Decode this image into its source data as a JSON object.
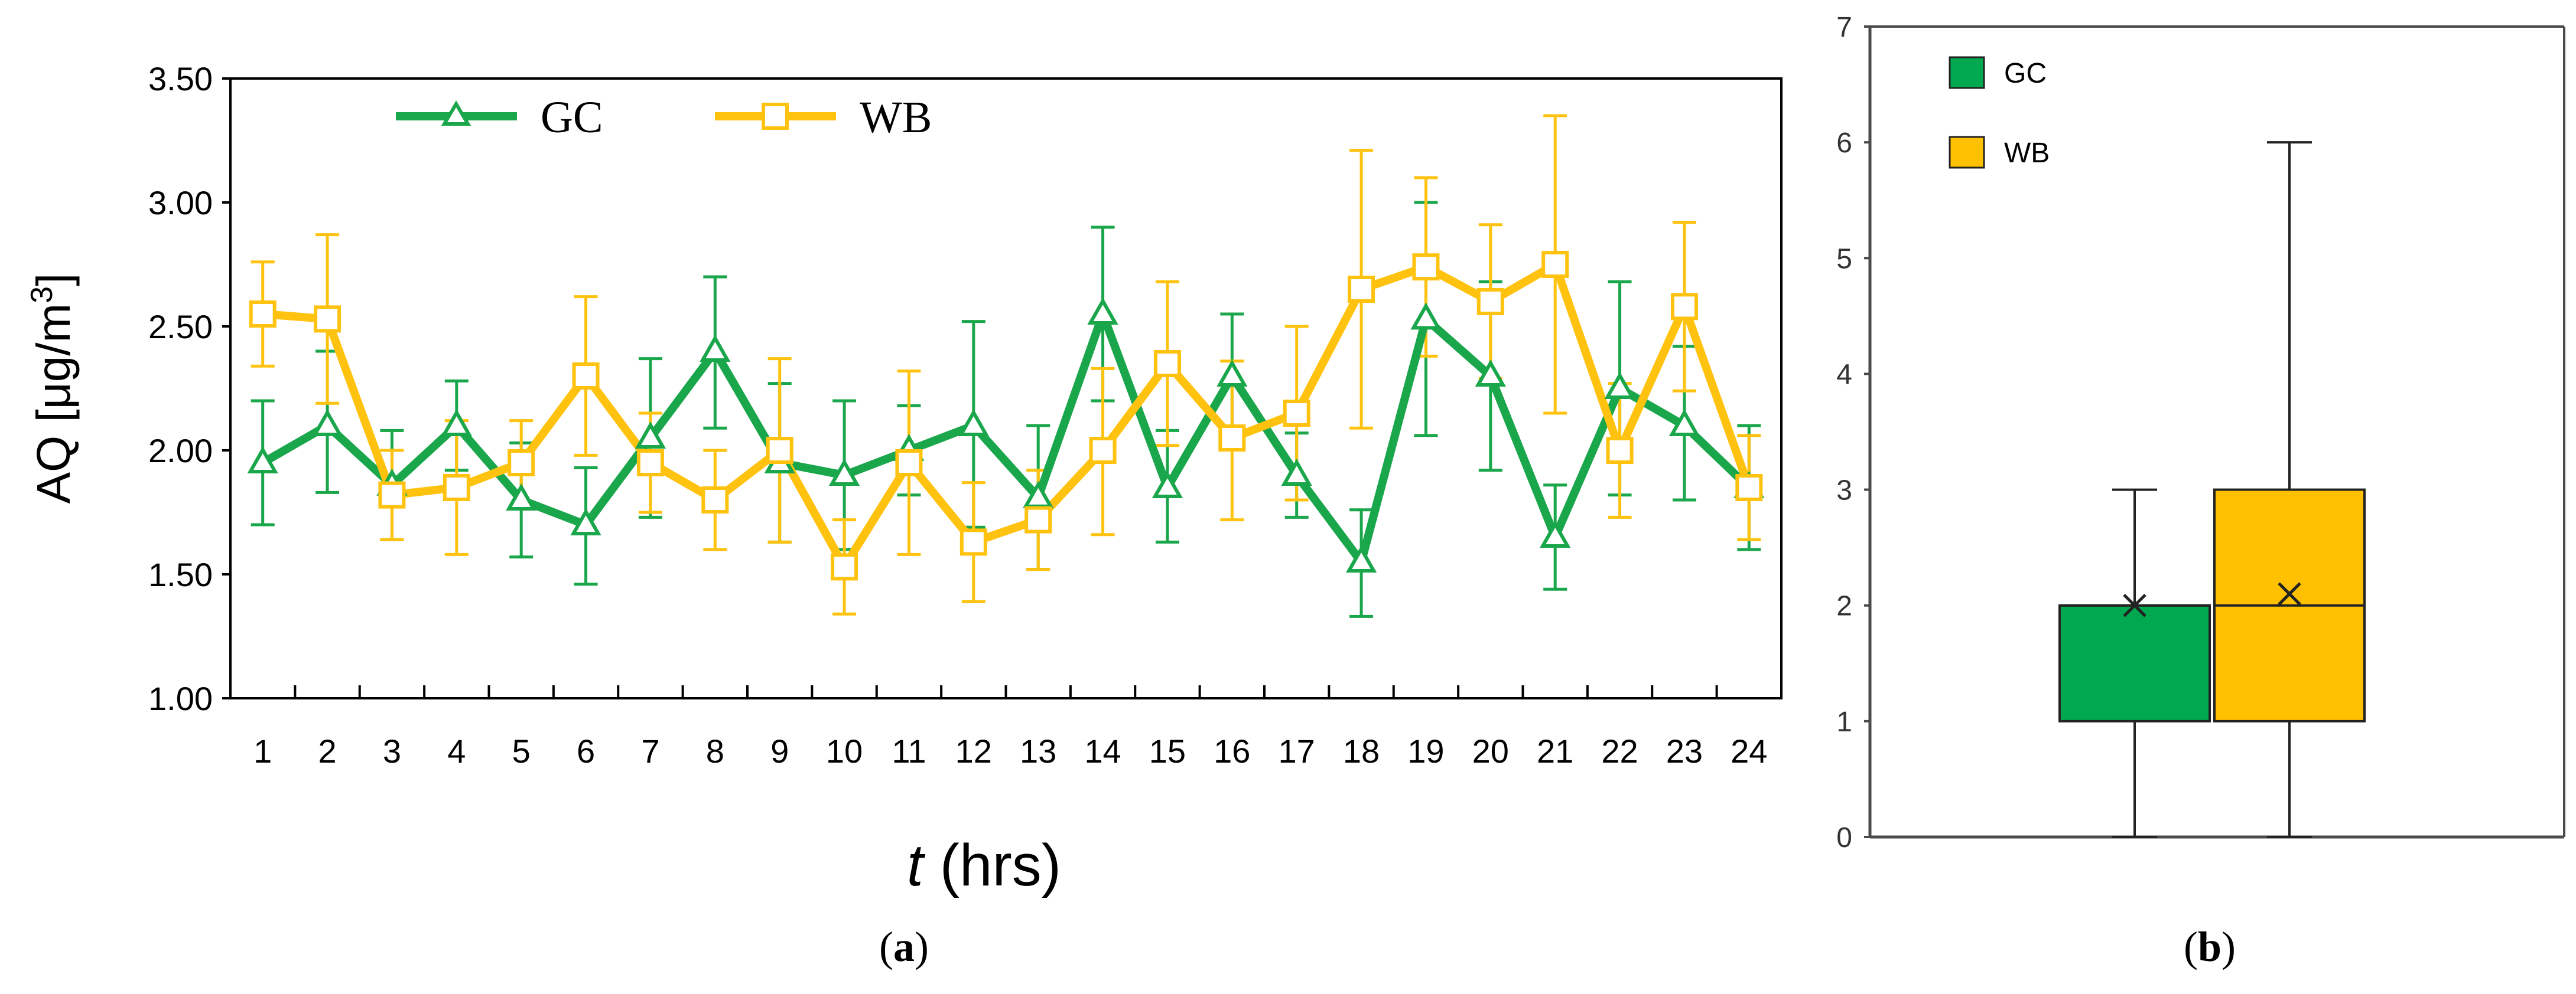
{
  "colors": {
    "gc": "#1aa64a",
    "wb": "#ffc20e",
    "gc_box": "#00a94f",
    "wb_box": "#ffc000",
    "axis": "#000000",
    "box_frame": "#4a4a4a"
  },
  "chart_data": [
    {
      "type": "line",
      "panel_label": "(a)",
      "xlabel_var": "t",
      "xlabel_unit": " (hrs)",
      "ylabel_base": "AQ [μg/m",
      "ylabel_sup": "3",
      "ylabel_close": "]",
      "ylim": [
        1.0,
        3.5
      ],
      "yticks": [
        "1.00",
        "1.50",
        "2.00",
        "2.50",
        "3.00",
        "3.50"
      ],
      "x": [
        1,
        2,
        3,
        4,
        5,
        6,
        7,
        8,
        9,
        10,
        11,
        12,
        13,
        14,
        15,
        16,
        17,
        18,
        19,
        20,
        21,
        22,
        23,
        24
      ],
      "series": [
        {
          "name": "GC",
          "marker": "triangle",
          "values": [
            1.95,
            2.1,
            1.86,
            2.1,
            1.8,
            1.7,
            2.05,
            2.4,
            1.95,
            1.9,
            2.0,
            2.1,
            1.81,
            2.55,
            1.85,
            2.3,
            1.9,
            1.55,
            2.53,
            2.3,
            1.65,
            2.25,
            2.1,
            1.85
          ],
          "err_upper": [
            2.2,
            2.4,
            2.08,
            2.28,
            2.03,
            1.93,
            2.37,
            2.7,
            2.27,
            2.2,
            2.18,
            2.52,
            2.1,
            2.9,
            2.08,
            2.55,
            2.07,
            1.76,
            3.0,
            2.68,
            1.86,
            2.68,
            2.42,
            2.1
          ],
          "err_lower": [
            1.7,
            1.83,
            1.64,
            1.92,
            1.57,
            1.46,
            1.73,
            2.09,
            1.63,
            1.6,
            1.82,
            1.69,
            1.52,
            2.2,
            1.63,
            2.06,
            1.73,
            1.33,
            2.06,
            1.92,
            1.44,
            1.82,
            1.8,
            1.6
          ]
        },
        {
          "name": "WB",
          "marker": "square",
          "values": [
            2.55,
            2.53,
            1.82,
            1.85,
            1.95,
            2.3,
            1.95,
            1.8,
            2.0,
            1.53,
            1.95,
            1.63,
            1.72,
            2.0,
            2.35,
            2.05,
            2.15,
            2.65,
            2.74,
            2.6,
            2.75,
            2.0,
            2.58,
            1.85
          ],
          "err_upper": [
            2.76,
            2.87,
            2.0,
            2.12,
            2.12,
            2.62,
            2.15,
            2.0,
            2.37,
            1.72,
            2.32,
            1.87,
            1.92,
            2.33,
            2.68,
            2.36,
            2.5,
            3.21,
            3.1,
            2.91,
            3.35,
            2.27,
            2.92,
            2.06
          ],
          "err_lower": [
            2.34,
            2.19,
            1.64,
            1.58,
            1.78,
            1.98,
            1.75,
            1.6,
            1.63,
            1.34,
            1.58,
            1.39,
            1.52,
            1.66,
            2.02,
            1.72,
            1.8,
            2.09,
            2.38,
            2.29,
            2.15,
            1.73,
            2.24,
            1.64
          ]
        }
      ]
    },
    {
      "type": "box",
      "panel_label": "(b)",
      "ylim": [
        0,
        7
      ],
      "yticks": [
        "0",
        "1",
        "2",
        "3",
        "4",
        "5",
        "6",
        "7"
      ],
      "series": [
        {
          "name": "GC",
          "min": 0,
          "q1": 1,
          "median": 2,
          "q3": 2,
          "max": 3,
          "mean": 2.0
        },
        {
          "name": "WB",
          "min": 0,
          "q1": 1,
          "median": 2,
          "q3": 3,
          "max": 6,
          "mean": 2.1
        }
      ]
    }
  ]
}
